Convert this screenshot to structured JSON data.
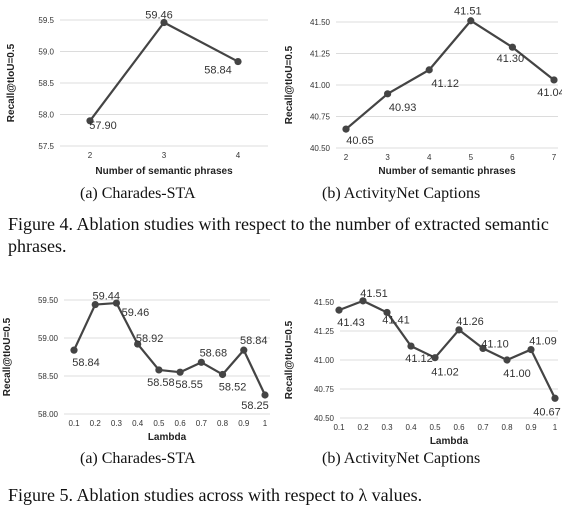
{
  "chart_data": [
    {
      "type": "line",
      "x": [
        "2",
        "3",
        "4"
      ],
      "values": [
        57.9,
        59.46,
        58.84
      ],
      "value_labels": [
        "57.90",
        "59.46",
        "58.84"
      ],
      "xlabel": "Number of semantic phrases",
      "ylabel": "Recall@tIoU=0.5",
      "ylim": [
        57.5,
        59.5
      ],
      "yticks": [
        "57.5",
        "58.0",
        "58.5",
        "59.0",
        "59.5"
      ],
      "grid": true,
      "caption": "(a) Charades-STA"
    },
    {
      "type": "line",
      "x": [
        "2",
        "3",
        "4",
        "5",
        "6",
        "7"
      ],
      "values": [
        40.65,
        40.93,
        41.12,
        41.51,
        41.3,
        41.04
      ],
      "value_labels": [
        "40.65",
        "40.93",
        "41.12",
        "41.51",
        "41.30",
        "41.04"
      ],
      "xlabel": "Number of semantic phrases",
      "ylabel": "Recall@tIoU=0.5",
      "ylim": [
        40.5,
        41.5
      ],
      "yticks": [
        "40.50",
        "40.75",
        "41.00",
        "41.25",
        "41.50"
      ],
      "grid": true,
      "caption": "(b) ActivityNet Captions"
    },
    {
      "type": "line",
      "x": [
        "0.1",
        "0.2",
        "0.3",
        "0.4",
        "0.5",
        "0.6",
        "0.7",
        "0.8",
        "0.9",
        "1"
      ],
      "values": [
        58.84,
        59.44,
        59.46,
        58.92,
        58.58,
        58.55,
        58.68,
        58.52,
        58.84,
        58.25
      ],
      "value_labels": [
        "58.84",
        "59.44",
        "59.46",
        "58.92",
        "58.58",
        "58.55",
        "58.68",
        "58.52",
        "58.84",
        "58.25"
      ],
      "xlabel": "Lambda",
      "ylabel": "Recall@tIoU=0.5",
      "ylim": [
        58.0,
        59.5
      ],
      "yticks": [
        "58.00",
        "58.50",
        "59.00",
        "59.50"
      ],
      "grid": true,
      "caption": "(a) Charades-STA"
    },
    {
      "type": "line",
      "x": [
        "0.1",
        "0.2",
        "0.3",
        "0.4",
        "0.5",
        "0.6",
        "0.7",
        "0.8",
        "0.9",
        "1"
      ],
      "values": [
        41.43,
        41.51,
        41.41,
        41.12,
        41.02,
        41.26,
        41.1,
        41.0,
        41.09,
        40.67
      ],
      "value_labels": [
        "41.43",
        "41.51",
        "41.41",
        "41.12",
        "41.02",
        "41.26",
        "41.10",
        "41.00",
        "41.09",
        "40.67"
      ],
      "xlabel": "Lambda",
      "ylabel": "Recall@tIoU=0.5",
      "ylim": [
        40.5,
        41.5
      ],
      "yticks": [
        "40.50",
        "40.75",
        "41.00",
        "41.25",
        "41.50"
      ],
      "grid": true,
      "caption": "(b) ActivityNet Captions"
    }
  ],
  "figure4_caption": "Figure 4.  Ablation studies with respect to the number of extracted semantic phrases.",
  "figure5_caption": "Figure 5.  Ablation studies across with respect to λ values.",
  "colors": {
    "line": "#444444",
    "marker": "#444444",
    "grid": "#dcdcdc"
  }
}
